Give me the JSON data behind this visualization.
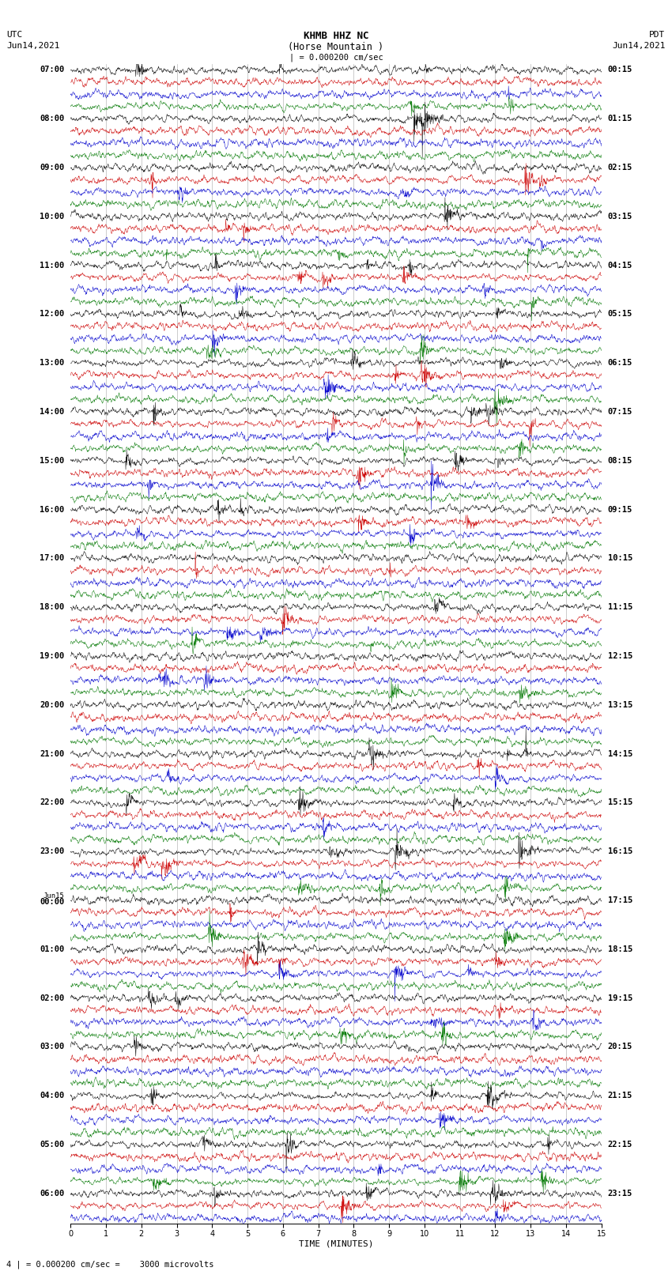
{
  "title_line1": "KHMB HHZ NC",
  "title_line2": "(Horse Mountain )",
  "title_line3": "| = 0.000200 cm/sec",
  "left_header_line1": "UTC",
  "left_header_line2": "Jun14,2021",
  "right_header_line1": "PDT",
  "right_header_line2": "Jun14,2021",
  "xlabel": "TIME (MINUTES)",
  "footer": "4 | = 0.000200 cm/sec =    3000 microvolts",
  "xlim": [
    0,
    15
  ],
  "x_ticks": [
    0,
    1,
    2,
    3,
    4,
    5,
    6,
    7,
    8,
    9,
    10,
    11,
    12,
    13,
    14,
    15
  ],
  "left_labels": [
    "07:00",
    "",
    "",
    "",
    "08:00",
    "",
    "",
    "",
    "09:00",
    "",
    "",
    "",
    "10:00",
    "",
    "",
    "",
    "11:00",
    "",
    "",
    "",
    "12:00",
    "",
    "",
    "",
    "13:00",
    "",
    "",
    "",
    "14:00",
    "",
    "",
    "",
    "15:00",
    "",
    "",
    "",
    "16:00",
    "",
    "",
    "",
    "17:00",
    "",
    "",
    "",
    "18:00",
    "",
    "",
    "",
    "19:00",
    "",
    "",
    "",
    "20:00",
    "",
    "",
    "",
    "21:00",
    "",
    "",
    "",
    "22:00",
    "",
    "",
    "",
    "23:00",
    "",
    "",
    "",
    "Jun15|00:00",
    "",
    "",
    "",
    "01:00",
    "",
    "",
    "",
    "02:00",
    "",
    "",
    "",
    "03:00",
    "",
    "",
    "",
    "04:00",
    "",
    "",
    "",
    "05:00",
    "",
    "",
    "",
    "06:00",
    "",
    ""
  ],
  "right_labels": [
    "00:15",
    "",
    "",
    "",
    "01:15",
    "",
    "",
    "",
    "02:15",
    "",
    "",
    "",
    "03:15",
    "",
    "",
    "",
    "04:15",
    "",
    "",
    "",
    "05:15",
    "",
    "",
    "",
    "06:15",
    "",
    "",
    "",
    "07:15",
    "",
    "",
    "",
    "08:15",
    "",
    "",
    "",
    "09:15",
    "",
    "",
    "",
    "10:15",
    "",
    "",
    "",
    "11:15",
    "",
    "",
    "",
    "12:15",
    "",
    "",
    "",
    "13:15",
    "",
    "",
    "",
    "14:15",
    "",
    "",
    "",
    "15:15",
    "",
    "",
    "",
    "16:15",
    "",
    "",
    "",
    "17:15",
    "",
    "",
    "",
    "18:15",
    "",
    "",
    "",
    "19:15",
    "",
    "",
    "",
    "20:15",
    "",
    "",
    "",
    "21:15",
    "",
    "",
    "",
    "22:15",
    "",
    "",
    "",
    "23:15",
    "",
    ""
  ],
  "colors": [
    "black",
    "red",
    "blue",
    "green"
  ],
  "n_rows": 95,
  "bg_color": "white",
  "trace_color_black": "#000000",
  "trace_color_red": "#cc0000",
  "trace_color_blue": "#0000cc",
  "trace_color_green": "#007700"
}
